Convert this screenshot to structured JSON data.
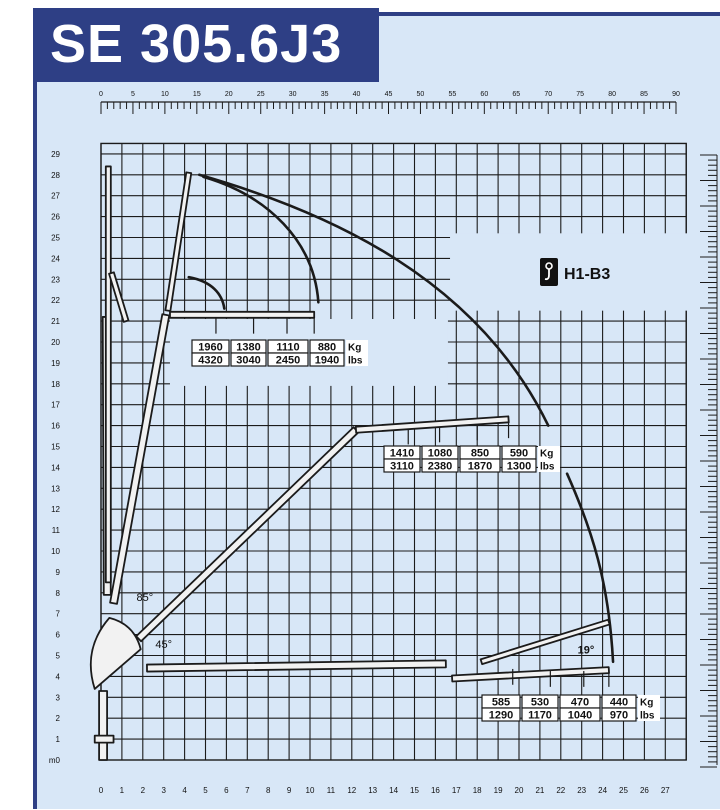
{
  "title": "SE 305.6J3",
  "model_code": "H1-B3",
  "icon": "crane-hook-icon",
  "colors": {
    "frame": "#2e3f85",
    "background": "#d8e7f7",
    "grid": "#1b1b1b"
  },
  "top_scale": {
    "ticks": [
      "0",
      "5",
      "10",
      "15",
      "20",
      "25",
      "30",
      "35",
      "40",
      "45",
      "50",
      "55",
      "60",
      "65",
      "70",
      "75",
      "80",
      "85",
      "90"
    ]
  },
  "x_axis": {
    "ticks": [
      "0",
      "1",
      "2",
      "3",
      "4",
      "5",
      "6",
      "7",
      "8",
      "9",
      "10",
      "11",
      "12",
      "13",
      "14",
      "15",
      "16",
      "17",
      "18",
      "19",
      "20",
      "21",
      "22",
      "23",
      "24",
      "25",
      "26",
      "27"
    ]
  },
  "y_axis": {
    "unit_label": "m0",
    "ticks": [
      "1",
      "2",
      "3",
      "4",
      "5",
      "6",
      "7",
      "8",
      "9",
      "10",
      "11",
      "12",
      "13",
      "14",
      "15",
      "16",
      "17",
      "18",
      "19",
      "20",
      "21",
      "22",
      "23",
      "24",
      "25",
      "26",
      "27",
      "28",
      "29"
    ]
  },
  "angles": [
    "85°",
    "45°",
    "19°"
  ],
  "load_tables": [
    {
      "kg": [
        "1960",
        "1380",
        "1110",
        "880"
      ],
      "lbs": [
        "4320",
        "3040",
        "2450",
        "1940"
      ],
      "kg_unit": "Kg",
      "lbs_unit": "lbs"
    },
    {
      "kg": [
        "1410",
        "1080",
        "850",
        "590"
      ],
      "lbs": [
        "3110",
        "2380",
        "1870",
        "1300"
      ],
      "kg_unit": "Kg",
      "lbs_unit": "lbs"
    },
    {
      "kg": [
        "585",
        "530",
        "470",
        "440"
      ],
      "lbs": [
        "1290",
        "1170",
        "1040",
        "970"
      ],
      "kg_unit": "Kg",
      "lbs_unit": "lbs"
    }
  ]
}
